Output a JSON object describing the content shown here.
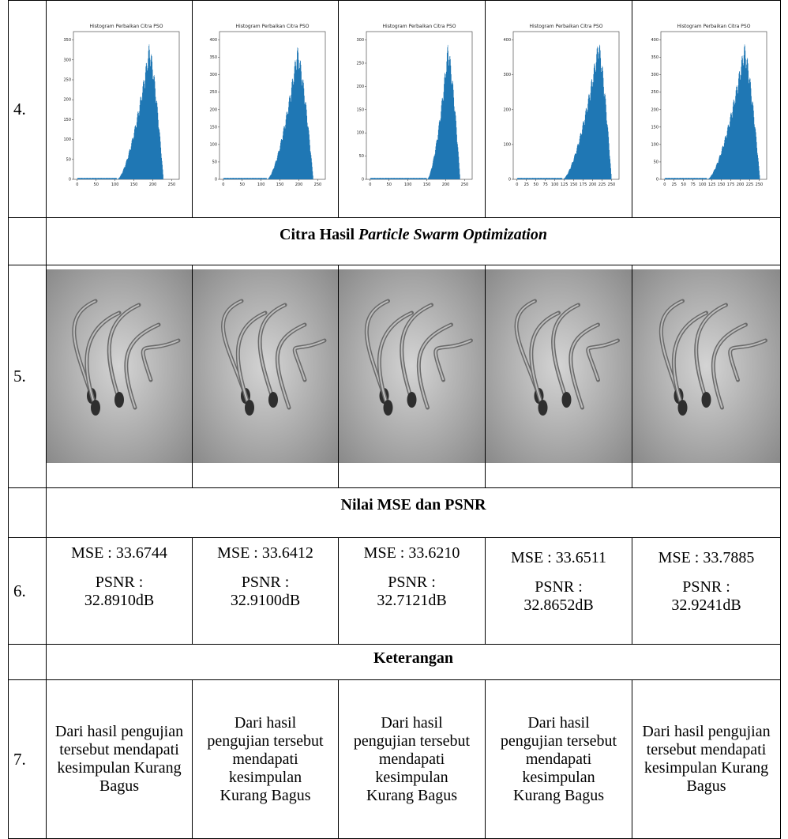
{
  "row4": {
    "number": "4.",
    "histograms": [
      {
        "title": "Histogram Perbaikan Citra PSO",
        "xticks": [
          0,
          50,
          100,
          150,
          200,
          250
        ],
        "yticks": [
          0,
          50,
          100,
          150,
          200,
          250,
          300,
          350
        ]
      },
      {
        "title": "Histogram Perbaikan Citra PSO",
        "xticks": [
          0,
          50,
          100,
          150,
          200,
          250
        ],
        "yticks": [
          0,
          50,
          100,
          150,
          200,
          250,
          300,
          350,
          400
        ]
      },
      {
        "title": "Histogram Perbaikan Citra PSO",
        "xticks": [
          0,
          50,
          100,
          150,
          200,
          250
        ],
        "yticks": [
          0,
          50,
          100,
          150,
          200,
          250,
          300
        ]
      },
      {
        "title": "Histogram Perbaikan Citra PSO",
        "xticks": [
          0,
          25,
          50,
          75,
          100,
          125,
          150,
          175,
          200,
          225,
          250
        ],
        "yticks": [
          0,
          100,
          200,
          300,
          400
        ]
      },
      {
        "title": "Histogram Perbaikan Citra PSO",
        "xticks": [
          0,
          25,
          50,
          75,
          100,
          125,
          150,
          175,
          200,
          225,
          250
        ],
        "yticks": [
          0,
          50,
          100,
          150,
          200,
          250,
          300,
          350,
          400
        ]
      }
    ]
  },
  "section_pso": {
    "text": "Citra Hasil",
    "italic": "Particle Swarm Optimization"
  },
  "row5": {
    "number": "5."
  },
  "section_mse": "Nilai MSE dan PSNR",
  "row6": {
    "number": "6.",
    "cells": [
      {
        "mse": "MSE : 33.6744",
        "psnr_label": "PSNR :",
        "psnr": "32.8910dB"
      },
      {
        "mse": "MSE : 33.6412",
        "psnr_label": "PSNR :",
        "psnr": "32.9100dB"
      },
      {
        "mse": "MSE : 33.6210",
        "psnr_label": "PSNR :",
        "psnr": "32.7121dB"
      },
      {
        "mse": "MSE : 33.6511",
        "psnr_label": "PSNR :",
        "psnr": "32.8652dB"
      },
      {
        "mse": "MSE : 33.7885",
        "psnr_label": "PSNR :",
        "psnr": "32.9241dB"
      }
    ]
  },
  "section_ket": "Keterangan",
  "row7": {
    "number": "7.",
    "cells": [
      "Dari hasil pengujian tersebut mendapati kesimpulan Kurang Bagus",
      "Dari hasil pengujian tersebut mendapati kesimpulan Kurang Bagus",
      "Dari hasil pengujian tersebut mendapati kesimpulan Kurang Bagus",
      "Dari hasil pengujian tersebut mendapati kesimpulan Kurang Bagus",
      "Dari hasil pengujian tersebut mendapati kesimpulan Kurang Bagus"
    ]
  }
}
